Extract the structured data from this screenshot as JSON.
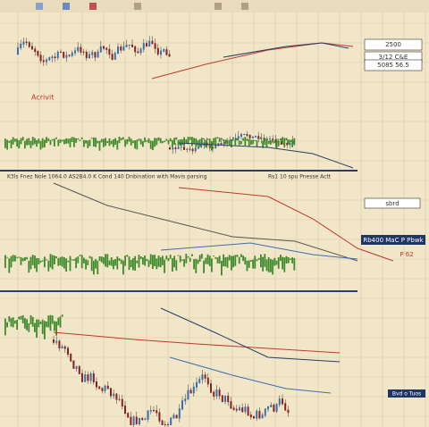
{
  "panels": [
    {
      "label": "Acrivit"
    },
    {
      "label": "K3ls Fnez Nole 1064.0 AS2B4.0 K Cond 140 Dnbination with Mavis parsing"
    },
    {
      "label": "Rs1 10 spu Pnesse Actt"
    }
  ],
  "side_boxes": [
    "2500",
    "3/12  C&E",
    "5085  56.5",
    "sbrd",
    "Rb400 MaC P Pbwk",
    "P 62",
    "Bvd o Tuos"
  ]
}
